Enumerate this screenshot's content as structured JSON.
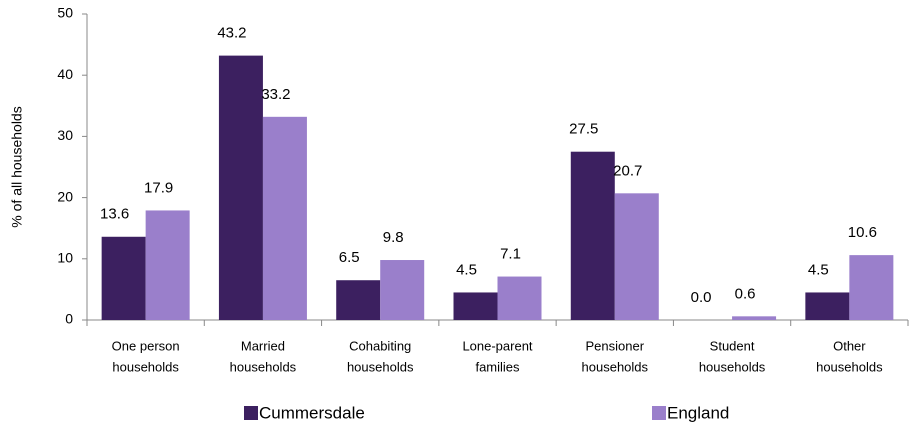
{
  "chart_data": {
    "type": "bar",
    "y_label": "% of all households",
    "categories": [
      [
        "One person",
        "households"
      ],
      [
        "Married",
        "households"
      ],
      [
        "Cohabiting",
        "households"
      ],
      [
        "Lone-parent",
        "families"
      ],
      [
        "Pensioner",
        "households"
      ],
      [
        "Student",
        "households"
      ],
      [
        "Other",
        "households"
      ]
    ],
    "series": [
      {
        "name": "Cummersdale",
        "color": "#3c2060",
        "values": [
          13.6,
          43.2,
          6.5,
          4.5,
          27.5,
          0,
          4.5
        ],
        "value_labels": [
          "13.6",
          "43.2",
          "6.5",
          "4.5",
          "27.5",
          "0.0",
          "4.5"
        ]
      },
      {
        "name": "England",
        "color": "#9a7fcb",
        "values": [
          17.9,
          33.2,
          9.8,
          7.1,
          20.7,
          0.6,
          10.6
        ]
      }
    ],
    "ylim": [
      0,
      50
    ],
    "yticks": [
      0,
      10,
      20,
      30,
      40,
      50
    ],
    "grid": false,
    "legend": "bottom"
  }
}
